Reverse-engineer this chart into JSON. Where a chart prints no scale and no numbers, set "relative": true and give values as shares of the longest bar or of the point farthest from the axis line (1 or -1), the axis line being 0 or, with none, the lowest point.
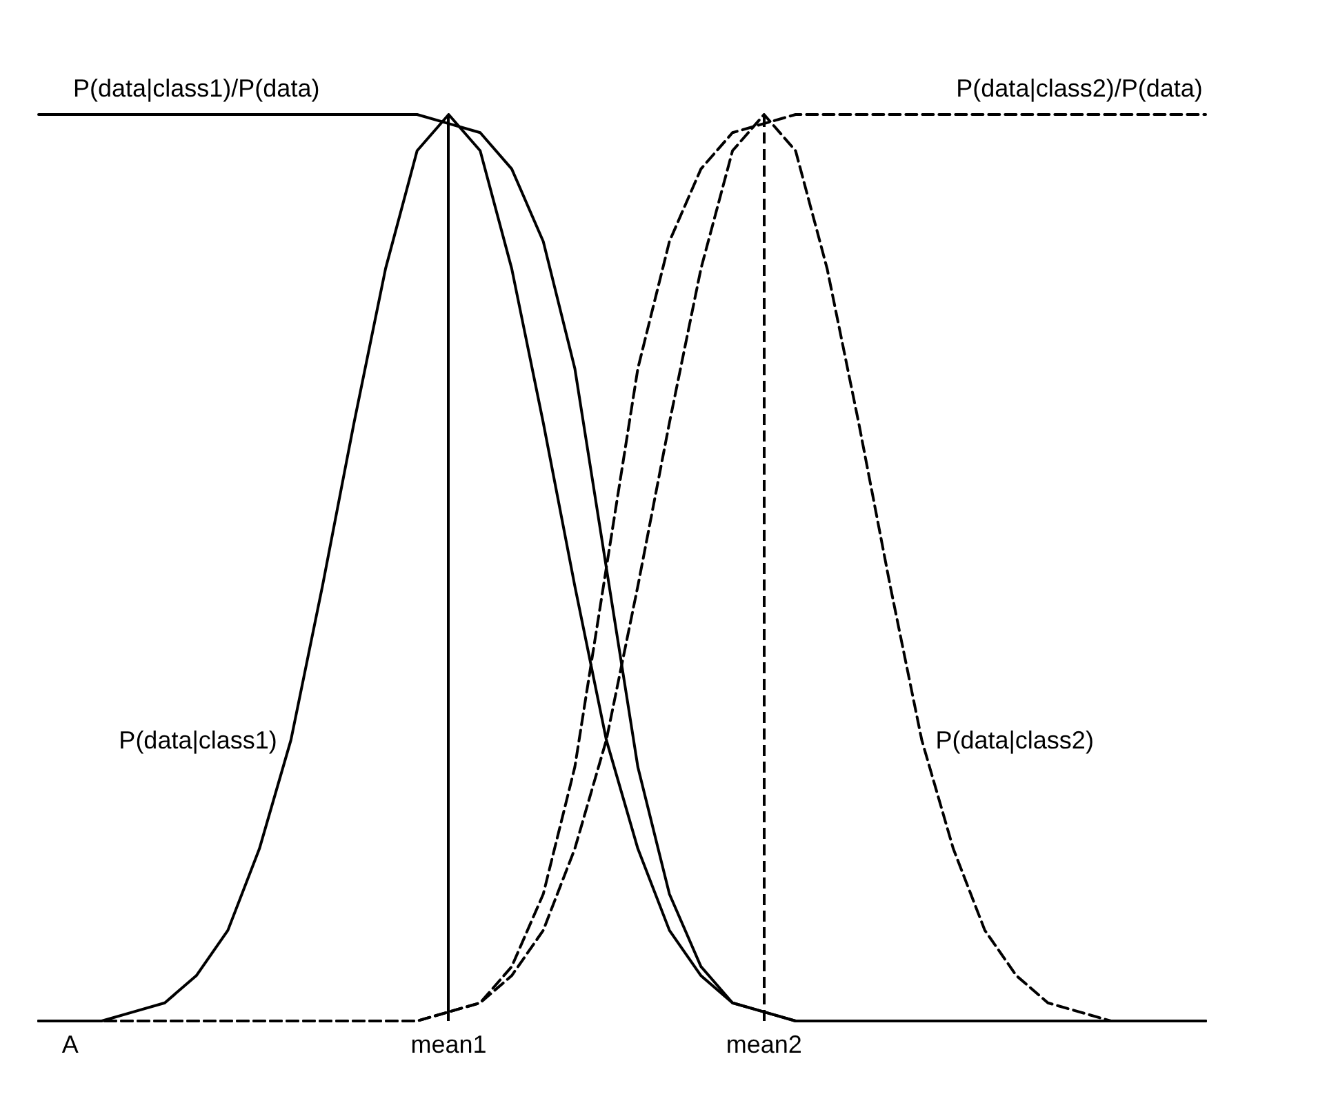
{
  "chart_data": {
    "type": "line",
    "relative": true,
    "legend": false,
    "grid": false,
    "marker": "none",
    "categories": [
      null,
      "A",
      null,
      null,
      null,
      null,
      null,
      null,
      null,
      null,
      null,
      null,
      null,
      "mean1",
      null,
      null,
      null,
      null,
      null,
      null,
      null,
      null,
      null,
      "mean2",
      null,
      null,
      null,
      null,
      null,
      null,
      null,
      null,
      null,
      null,
      null,
      null,
      null,
      null
    ],
    "series": [
      {
        "name": "P(data|class1)",
        "color": "#000000",
        "line_style": "solid",
        "values": [
          0,
          0,
          0,
          0.01,
          0.02,
          0.05,
          0.1,
          0.19,
          0.31,
          0.48,
          0.66,
          0.83,
          0.96,
          1,
          0.96,
          0.83,
          0.66,
          0.48,
          0.31,
          0.19,
          0.1,
          0.05,
          0.02,
          0.01,
          0,
          0,
          0,
          0,
          0,
          0,
          0,
          0,
          0,
          0,
          0,
          0,
          0,
          0
        ]
      },
      {
        "name": "P(data|class2)",
        "color": "#000000",
        "line_style": "dashed",
        "values": [
          0,
          0,
          0,
          0,
          0,
          0,
          0,
          0,
          0,
          0,
          0,
          0,
          0,
          0.01,
          0.02,
          0.05,
          0.1,
          0.19,
          0.31,
          0.48,
          0.66,
          0.83,
          0.96,
          1,
          0.96,
          0.83,
          0.66,
          0.48,
          0.31,
          0.19,
          0.1,
          0.05,
          0.02,
          0.01,
          0,
          0,
          0,
          0
        ]
      },
      {
        "name": "P(data|class1)/P(data)",
        "color": "#000000",
        "line_style": "solid",
        "values": [
          1,
          1,
          1,
          1,
          1,
          1,
          1,
          1,
          1,
          1,
          1,
          1,
          1,
          0.99,
          0.98,
          0.94,
          0.86,
          0.72,
          0.5,
          0.28,
          0.14,
          0.06,
          0.02,
          0.01,
          0,
          0,
          0,
          0,
          0,
          0,
          0,
          0,
          0,
          0,
          0,
          0,
          0,
          0
        ]
      },
      {
        "name": "P(data|class2)/P(data)",
        "color": "#000000",
        "line_style": "dashed",
        "values": [
          0,
          0,
          0,
          0,
          0,
          0,
          0,
          0,
          0,
          0,
          0,
          0,
          0,
          0.01,
          0.02,
          0.06,
          0.14,
          0.28,
          0.5,
          0.72,
          0.86,
          0.94,
          0.98,
          0.99,
          1,
          1,
          1,
          1,
          1,
          1,
          1,
          1,
          1,
          1,
          1,
          1,
          1,
          1
        ]
      }
    ],
    "ref_lines": [
      {
        "axis": "x",
        "value": "mean1",
        "color": "#000000",
        "line_style": "solid"
      },
      {
        "axis": "x",
        "value": "mean2",
        "color": "#000000",
        "line_style": "dashed"
      }
    ]
  }
}
